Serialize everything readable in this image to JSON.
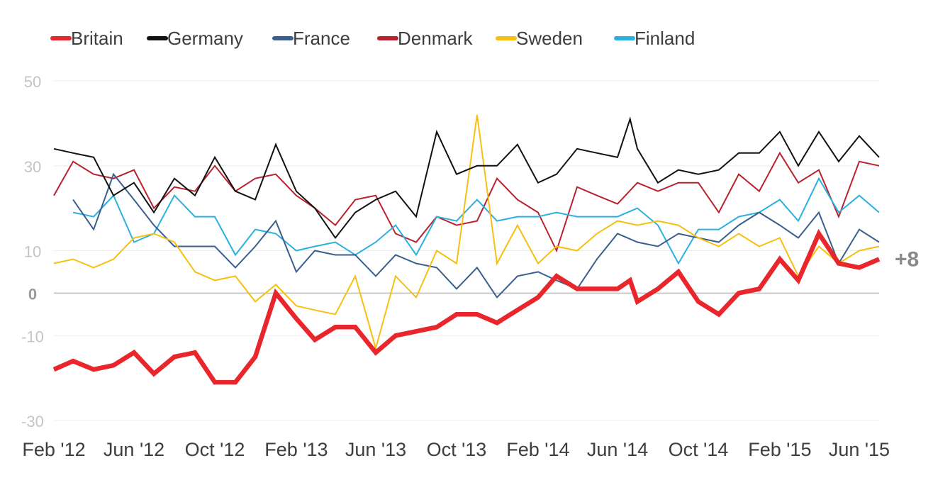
{
  "chart_data": {
    "type": "line",
    "title": "",
    "xlabel": "",
    "ylabel": "",
    "ylim": [
      -30,
      50
    ],
    "yticks": [
      {
        "value": 50,
        "label": "50"
      },
      {
        "value": 30,
        "label": "30"
      },
      {
        "value": 10,
        "label": "10"
      },
      {
        "value": 0,
        "label": "0"
      },
      {
        "value": -10,
        "label": "-10"
      },
      {
        "value": -30,
        "label": "-30"
      }
    ],
    "xticks": [
      "Feb '12",
      "Jun '12",
      "Oct '12",
      "Feb '13",
      "Jun '13",
      "Oct '13",
      "Feb '14",
      "Jun '14",
      "Oct '14",
      "Feb '15",
      "Jun '15"
    ],
    "grid": true,
    "legend_position": "top-left",
    "end_label": "+8",
    "colors": {
      "Britain": "#e8262c",
      "Germany": "#111111",
      "France": "#3a5f8f",
      "Denmark": "#b8222e",
      "Sweden": "#f7c00f",
      "Finland": "#2bb0e0",
      "grid": "#ececec",
      "zero_line": "#bbbbbb",
      "tick_text": "#c4c4c4",
      "axis_text": "#3d3d3d",
      "end_label_text": "#8a8a8a"
    },
    "series": [
      {
        "name": "Britain",
        "points": [
          [
            "2012-02-01",
            -18
          ],
          [
            "2012-03-01",
            -16
          ],
          [
            "2012-04-01",
            -18
          ],
          [
            "2012-05-01",
            -17
          ],
          [
            "2012-06-01",
            -14
          ],
          [
            "2012-07-01",
            -19
          ],
          [
            "2012-08-01",
            -15
          ],
          [
            "2012-09-01",
            -14
          ],
          [
            "2012-10-01",
            -21
          ],
          [
            "2012-11-01",
            -21
          ],
          [
            "2012-12-01",
            -15
          ],
          [
            "2013-01-01",
            0
          ],
          [
            "2013-02-01",
            -6
          ],
          [
            "2013-03-01",
            -11
          ],
          [
            "2013-04-01",
            -8
          ],
          [
            "2013-05-01",
            -8
          ],
          [
            "2013-06-01",
            -14
          ],
          [
            "2013-07-01",
            -10
          ],
          [
            "2013-08-01",
            -9
          ],
          [
            "2013-09-01",
            -8
          ],
          [
            "2013-10-01",
            -5
          ],
          [
            "2013-11-01",
            -5
          ],
          [
            "2013-12-01",
            -7
          ],
          [
            "2014-01-01",
            -4
          ],
          [
            "2014-02-01",
            -1
          ],
          [
            "2014-03-01",
            4
          ],
          [
            "2014-04-01",
            1
          ],
          [
            "2014-05-01",
            1
          ],
          [
            "2014-06-01",
            1
          ],
          [
            "2014-06-20",
            3
          ],
          [
            "2014-07-01",
            -2
          ],
          [
            "2014-08-01",
            1
          ],
          [
            "2014-09-01",
            5
          ],
          [
            "2014-10-01",
            -2
          ],
          [
            "2014-11-01",
            -5
          ],
          [
            "2014-12-01",
            0
          ],
          [
            "2015-01-01",
            1
          ],
          [
            "2015-02-01",
            8
          ],
          [
            "2015-03-01",
            3
          ],
          [
            "2015-04-01",
            14
          ],
          [
            "2015-05-01",
            7
          ],
          [
            "2015-06-01",
            6
          ],
          [
            "2015-07-01",
            8
          ]
        ]
      },
      {
        "name": "Germany",
        "points": [
          [
            "2012-02-01",
            34
          ],
          [
            "2012-03-01",
            33
          ],
          [
            "2012-04-01",
            32
          ],
          [
            "2012-05-01",
            23
          ],
          [
            "2012-06-01",
            26
          ],
          [
            "2012-07-01",
            19
          ],
          [
            "2012-08-01",
            27
          ],
          [
            "2012-09-01",
            23
          ],
          [
            "2012-10-01",
            32
          ],
          [
            "2012-11-01",
            24
          ],
          [
            "2012-12-01",
            22
          ],
          [
            "2013-01-01",
            35
          ],
          [
            "2013-02-01",
            24
          ],
          [
            "2013-03-01",
            20
          ],
          [
            "2013-04-01",
            13
          ],
          [
            "2013-05-01",
            19
          ],
          [
            "2013-06-01",
            22
          ],
          [
            "2013-07-01",
            24
          ],
          [
            "2013-08-01",
            18
          ],
          [
            "2013-09-01",
            38
          ],
          [
            "2013-10-01",
            28
          ],
          [
            "2013-11-01",
            30
          ],
          [
            "2013-12-01",
            30
          ],
          [
            "2014-01-01",
            35
          ],
          [
            "2014-02-01",
            26
          ],
          [
            "2014-03-01",
            28
          ],
          [
            "2014-04-01",
            34
          ],
          [
            "2014-05-01",
            33
          ],
          [
            "2014-06-01",
            32
          ],
          [
            "2014-06-20",
            41
          ],
          [
            "2014-07-01",
            34
          ],
          [
            "2014-08-01",
            26
          ],
          [
            "2014-09-01",
            29
          ],
          [
            "2014-10-01",
            28
          ],
          [
            "2014-11-01",
            29
          ],
          [
            "2014-12-01",
            33
          ],
          [
            "2015-01-01",
            33
          ],
          [
            "2015-02-01",
            38
          ],
          [
            "2015-03-01",
            30
          ],
          [
            "2015-04-01",
            38
          ],
          [
            "2015-05-01",
            31
          ],
          [
            "2015-06-01",
            37
          ],
          [
            "2015-07-01",
            32
          ]
        ]
      },
      {
        "name": "France",
        "points": [
          [
            "2012-03-01",
            22
          ],
          [
            "2012-04-01",
            15
          ],
          [
            "2012-05-01",
            28
          ],
          [
            "2012-06-01",
            22
          ],
          [
            "2012-07-01",
            16
          ],
          [
            "2012-08-01",
            11
          ],
          [
            "2012-09-01",
            11
          ],
          [
            "2012-10-01",
            11
          ],
          [
            "2012-11-01",
            6
          ],
          [
            "2012-12-01",
            11
          ],
          [
            "2013-01-01",
            17
          ],
          [
            "2013-02-01",
            5
          ],
          [
            "2013-03-01",
            10
          ],
          [
            "2013-04-01",
            9
          ],
          [
            "2013-05-01",
            9
          ],
          [
            "2013-06-01",
            4
          ],
          [
            "2013-07-01",
            9
          ],
          [
            "2013-08-01",
            7
          ],
          [
            "2013-09-01",
            6
          ],
          [
            "2013-10-01",
            1
          ],
          [
            "2013-11-01",
            6
          ],
          [
            "2013-12-01",
            -1
          ],
          [
            "2014-01-01",
            4
          ],
          [
            "2014-02-01",
            5
          ],
          [
            "2014-03-01",
            3
          ],
          [
            "2014-04-01",
            1
          ],
          [
            "2014-05-01",
            8
          ],
          [
            "2014-06-01",
            14
          ],
          [
            "2014-07-01",
            12
          ],
          [
            "2014-08-01",
            11
          ],
          [
            "2014-09-01",
            14
          ],
          [
            "2014-10-01",
            13
          ],
          [
            "2014-11-01",
            12
          ],
          [
            "2014-12-01",
            16
          ],
          [
            "2015-01-01",
            19
          ],
          [
            "2015-02-01",
            16
          ],
          [
            "2015-03-01",
            13
          ],
          [
            "2015-04-01",
            19
          ],
          [
            "2015-05-01",
            7
          ],
          [
            "2015-06-01",
            15
          ],
          [
            "2015-07-01",
            12
          ]
        ]
      },
      {
        "name": "Denmark",
        "points": [
          [
            "2012-02-01",
            23
          ],
          [
            "2012-03-01",
            31
          ],
          [
            "2012-04-01",
            28
          ],
          [
            "2012-05-01",
            27
          ],
          [
            "2012-06-01",
            29
          ],
          [
            "2012-07-01",
            20
          ],
          [
            "2012-08-01",
            25
          ],
          [
            "2012-09-01",
            24
          ],
          [
            "2012-10-01",
            30
          ],
          [
            "2012-11-01",
            24
          ],
          [
            "2012-12-01",
            27
          ],
          [
            "2013-01-01",
            28
          ],
          [
            "2013-02-01",
            23
          ],
          [
            "2013-03-01",
            20
          ],
          [
            "2013-04-01",
            16
          ],
          [
            "2013-05-01",
            22
          ],
          [
            "2013-06-01",
            23
          ],
          [
            "2013-07-01",
            14
          ],
          [
            "2013-08-01",
            12
          ],
          [
            "2013-09-01",
            18
          ],
          [
            "2013-10-01",
            16
          ],
          [
            "2013-11-01",
            17
          ],
          [
            "2013-12-01",
            27
          ],
          [
            "2014-01-01",
            22
          ],
          [
            "2014-02-01",
            19
          ],
          [
            "2014-03-01",
            10
          ],
          [
            "2014-04-01",
            25
          ],
          [
            "2014-05-01",
            23
          ],
          [
            "2014-06-01",
            21
          ],
          [
            "2014-07-01",
            26
          ],
          [
            "2014-08-01",
            24
          ],
          [
            "2014-09-01",
            26
          ],
          [
            "2014-10-01",
            26
          ],
          [
            "2014-11-01",
            19
          ],
          [
            "2014-12-01",
            28
          ],
          [
            "2015-01-01",
            24
          ],
          [
            "2015-02-01",
            33
          ],
          [
            "2015-03-01",
            26
          ],
          [
            "2015-04-01",
            29
          ],
          [
            "2015-05-01",
            18
          ],
          [
            "2015-06-01",
            31
          ],
          [
            "2015-07-01",
            30
          ]
        ]
      },
      {
        "name": "Sweden",
        "points": [
          [
            "2012-02-01",
            7
          ],
          [
            "2012-03-01",
            8
          ],
          [
            "2012-04-01",
            6
          ],
          [
            "2012-05-01",
            8
          ],
          [
            "2012-06-01",
            13
          ],
          [
            "2012-07-01",
            14
          ],
          [
            "2012-08-01",
            12
          ],
          [
            "2012-09-01",
            5
          ],
          [
            "2012-10-01",
            3
          ],
          [
            "2012-11-01",
            4
          ],
          [
            "2012-12-01",
            -2
          ],
          [
            "2013-01-01",
            2
          ],
          [
            "2013-02-01",
            -3
          ],
          [
            "2013-03-01",
            -4
          ],
          [
            "2013-04-01",
            -5
          ],
          [
            "2013-05-01",
            4
          ],
          [
            "2013-06-01",
            -13
          ],
          [
            "2013-07-01",
            4
          ],
          [
            "2013-08-01",
            -1
          ],
          [
            "2013-09-01",
            10
          ],
          [
            "2013-10-01",
            7
          ],
          [
            "2013-11-01",
            42
          ],
          [
            "2013-12-01",
            7
          ],
          [
            "2014-01-01",
            16
          ],
          [
            "2014-02-01",
            7
          ],
          [
            "2014-03-01",
            11
          ],
          [
            "2014-04-01",
            10
          ],
          [
            "2014-05-01",
            14
          ],
          [
            "2014-06-01",
            17
          ],
          [
            "2014-07-01",
            16
          ],
          [
            "2014-08-01",
            17
          ],
          [
            "2014-09-01",
            16
          ],
          [
            "2014-10-01",
            13
          ],
          [
            "2014-11-01",
            11
          ],
          [
            "2014-12-01",
            14
          ],
          [
            "2015-01-01",
            11
          ],
          [
            "2015-02-01",
            13
          ],
          [
            "2015-03-01",
            4
          ],
          [
            "2015-04-01",
            11
          ],
          [
            "2015-05-01",
            7
          ],
          [
            "2015-06-01",
            10
          ],
          [
            "2015-07-01",
            11
          ]
        ]
      },
      {
        "name": "Finland",
        "points": [
          [
            "2012-03-01",
            19
          ],
          [
            "2012-04-01",
            18
          ],
          [
            "2012-05-01",
            23
          ],
          [
            "2012-06-01",
            12
          ],
          [
            "2012-07-01",
            14
          ],
          [
            "2012-08-01",
            23
          ],
          [
            "2012-09-01",
            18
          ],
          [
            "2012-10-01",
            18
          ],
          [
            "2012-11-01",
            9
          ],
          [
            "2012-12-01",
            15
          ],
          [
            "2013-01-01",
            14
          ],
          [
            "2013-02-01",
            10
          ],
          [
            "2013-03-01",
            11
          ],
          [
            "2013-04-01",
            12
          ],
          [
            "2013-05-01",
            9
          ],
          [
            "2013-06-01",
            12
          ],
          [
            "2013-07-01",
            16
          ],
          [
            "2013-08-01",
            9
          ],
          [
            "2013-09-01",
            18
          ],
          [
            "2013-10-01",
            17
          ],
          [
            "2013-11-01",
            22
          ],
          [
            "2013-12-01",
            17
          ],
          [
            "2014-01-01",
            18
          ],
          [
            "2014-02-01",
            18
          ],
          [
            "2014-03-01",
            19
          ],
          [
            "2014-04-01",
            18
          ],
          [
            "2014-05-01",
            18
          ],
          [
            "2014-06-01",
            18
          ],
          [
            "2014-07-01",
            20
          ],
          [
            "2014-08-01",
            16
          ],
          [
            "2014-09-01",
            7
          ],
          [
            "2014-10-01",
            15
          ],
          [
            "2014-11-01",
            15
          ],
          [
            "2014-12-01",
            18
          ],
          [
            "2015-01-01",
            19
          ],
          [
            "2015-02-01",
            22
          ],
          [
            "2015-03-01",
            17
          ],
          [
            "2015-04-01",
            27
          ],
          [
            "2015-05-01",
            19
          ],
          [
            "2015-06-01",
            23
          ],
          [
            "2015-07-01",
            19
          ]
        ]
      }
    ]
  }
}
